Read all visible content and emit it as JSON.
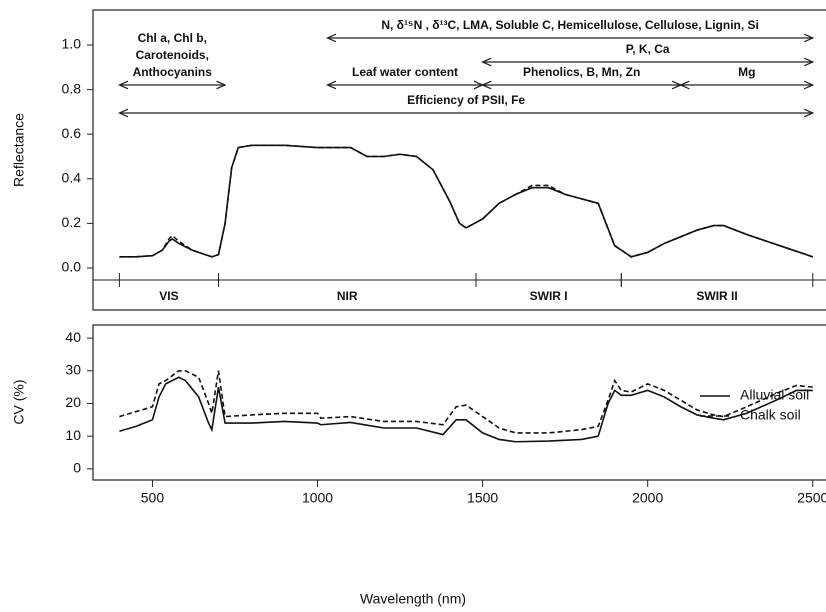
{
  "chart_data": [
    {
      "type": "line",
      "y_label": "Reflectance",
      "xlim": [
        320,
        2540
      ],
      "ylim": [
        -0.04,
        1.1
      ],
      "yticks": [
        {
          "value": 0,
          "label": "0.0"
        },
        0.2,
        0.4,
        0.6,
        0.8,
        {
          "value": 1,
          "label": "1.0"
        }
      ],
      "x": [
        400,
        450,
        500,
        530,
        550,
        560,
        580,
        620,
        660,
        680,
        700,
        720,
        740,
        760,
        800,
        900,
        1000,
        1100,
        1150,
        1200,
        1250,
        1300,
        1350,
        1400,
        1430,
        1450,
        1500,
        1550,
        1600,
        1650,
        1700,
        1750,
        1800,
        1850,
        1900,
        1950,
        2000,
        2050,
        2100,
        2150,
        2200,
        2230,
        2300,
        2400,
        2500
      ],
      "series": [
        {
          "color": "#111111",
          "dash": false,
          "values": [
            0.05,
            0.05,
            0.055,
            0.08,
            0.12,
            0.13,
            0.11,
            0.08,
            0.06,
            0.05,
            0.06,
            0.2,
            0.45,
            0.54,
            0.55,
            0.55,
            0.54,
            0.54,
            0.5,
            0.5,
            0.51,
            0.5,
            0.44,
            0.3,
            0.2,
            0.18,
            0.22,
            0.29,
            0.33,
            0.36,
            0.36,
            0.33,
            0.31,
            0.29,
            0.1,
            0.05,
            0.07,
            0.11,
            0.14,
            0.17,
            0.19,
            0.19,
            0.15,
            0.1,
            0.05
          ]
        },
        {
          "color": "#111111",
          "dash": true,
          "values": [
            0.05,
            0.05,
            0.055,
            0.08,
            0.13,
            0.145,
            0.12,
            0.08,
            0.06,
            0.05,
            0.06,
            0.2,
            0.45,
            0.54,
            0.55,
            0.55,
            0.54,
            0.54,
            0.5,
            0.5,
            0.51,
            0.5,
            0.44,
            0.3,
            0.2,
            0.18,
            0.22,
            0.29,
            0.33,
            0.37,
            0.37,
            0.33,
            0.31,
            0.29,
            0.1,
            0.05,
            0.07,
            0.11,
            0.14,
            0.17,
            0.19,
            0.19,
            0.15,
            0.1,
            0.05
          ]
        }
      ],
      "annotations": [
        {
          "lines": [
            "Chl a, Chl b,",
            "Carotenoids,",
            "Anthocyanins"
          ],
          "range": [
            400,
            720
          ]
        },
        {
          "lines": [
            "N, δ¹⁵N , δ¹³C, LMA, Soluble C, Hemicellulose, Cellulose, Lignin, Si"
          ],
          "range": [
            1030,
            2500
          ]
        },
        {
          "lines": [
            "P, K, Ca"
          ],
          "range": [
            1500,
            2500
          ]
        },
        {
          "lines": [
            "Leaf water content"
          ],
          "range": [
            1030,
            1500
          ]
        },
        {
          "lines": [
            "Phenolics, B, Mn, Zn"
          ],
          "range": [
            1500,
            2100
          ]
        },
        {
          "lines": [
            "Mg"
          ],
          "range": [
            2100,
            2500
          ]
        },
        {
          "lines": [
            "Efficiency of PSII, Fe"
          ],
          "range": [
            400,
            2500
          ]
        }
      ],
      "regions": [
        {
          "label": "VIS",
          "range": [
            400,
            700
          ]
        },
        {
          "label": "NIR",
          "range": [
            700,
            1480
          ]
        },
        {
          "label": "SWIR I",
          "range": [
            1480,
            1920
          ]
        },
        {
          "label": "SWIR II",
          "range": [
            1920,
            2500
          ]
        }
      ]
    },
    {
      "type": "line",
      "x_label": "Wavelength (nm)",
      "y_label": "CV (%)",
      "xlim": [
        320,
        2540
      ],
      "ylim": [
        -3.4,
        44
      ],
      "xticks": [
        500,
        1000,
        1500,
        2000,
        2500
      ],
      "yticks": [
        0,
        10,
        20,
        30,
        40
      ],
      "x": [
        400,
        450,
        500,
        520,
        540,
        580,
        600,
        640,
        670,
        680,
        700,
        720,
        800,
        900,
        1000,
        1010,
        1100,
        1200,
        1300,
        1380,
        1420,
        1450,
        1500,
        1550,
        1600,
        1700,
        1800,
        1850,
        1880,
        1900,
        1920,
        1950,
        2000,
        2050,
        2100,
        2150,
        2200,
        2230,
        2300,
        2400,
        2450,
        2500
      ],
      "series": [
        {
          "name": "Alluvial soil",
          "color": "#111111",
          "dash": false,
          "values": [
            11.5,
            13,
            15,
            22,
            26,
            28,
            27,
            22,
            14,
            12,
            25,
            14,
            14,
            14.5,
            14,
            13.5,
            14.2,
            12.5,
            12.5,
            10.5,
            15,
            15,
            11,
            9,
            8.3,
            8.5,
            9,
            10,
            20,
            24,
            22.5,
            22.5,
            24,
            22,
            19,
            16.5,
            15.5,
            15,
            17,
            21.5,
            24,
            24
          ]
        },
        {
          "name": "Chalk soil",
          "color": "#111111",
          "dash": true,
          "values": [
            16,
            17.5,
            19,
            26,
            27,
            30,
            30,
            28,
            20,
            17,
            30,
            16,
            16.5,
            17,
            17,
            15.5,
            16,
            14.5,
            14.5,
            13.5,
            19,
            19.5,
            16,
            12.5,
            11,
            11,
            12,
            13,
            21,
            27,
            24,
            23.5,
            26,
            24,
            21,
            18,
            16.5,
            16,
            19,
            23.5,
            25.5,
            25
          ]
        }
      ]
    }
  ]
}
